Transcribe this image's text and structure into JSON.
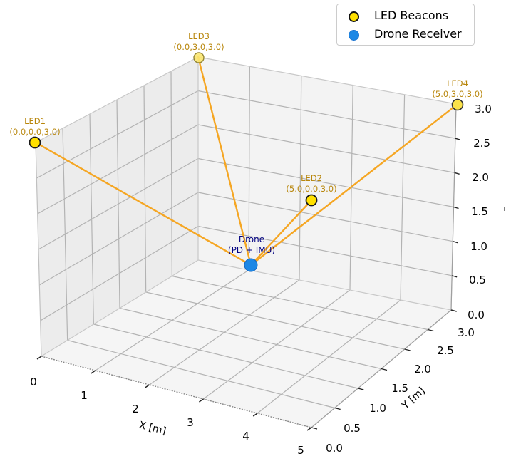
{
  "chart_data": {
    "type": "scatter3d",
    "title": "",
    "xlabel": "X [m]",
    "ylabel": "Y [m]",
    "zlabel": "",
    "xlim": [
      0,
      5
    ],
    "ylim": [
      0,
      3
    ],
    "zlim": [
      0,
      3
    ],
    "grid": true,
    "legend_position": "upper right",
    "x_ticks": [
      "0",
      "1",
      "2",
      "3",
      "4",
      "5"
    ],
    "y_ticks": [
      "0.0",
      "0.5",
      "1.0",
      "1.5",
      "2.0",
      "2.5",
      "3.0"
    ],
    "z_ticks": [
      "0.0",
      "0.5",
      "1.0",
      "1.5",
      "2.0",
      "2.5",
      "3.0"
    ],
    "series": [
      {
        "name": "LED Beacons",
        "marker": "circle",
        "color": "#ffe000",
        "edge_color": "#000000",
        "points": [
          {
            "label": "LED1",
            "coord_text": "(0.0,0.0,3.0)",
            "x": 0.0,
            "y": 0.0,
            "z": 3.0
          },
          {
            "label": "LED2",
            "coord_text": "(5.0,0.0,3.0)",
            "x": 5.0,
            "y": 0.0,
            "z": 3.0
          },
          {
            "label": "LED3",
            "coord_text": "(0.0,3.0,3.0)",
            "x": 0.0,
            "y": 3.0,
            "z": 3.0
          },
          {
            "label": "LED4",
            "coord_text": "(5.0,3.0,3.0)",
            "x": 5.0,
            "y": 3.0,
            "z": 3.0
          }
        ]
      },
      {
        "name": "Drone Receiver",
        "marker": "circle",
        "color": "#1e88e5",
        "points": [
          {
            "label": "Drone",
            "sublabel": "(PD + IMU)",
            "x": 2.5,
            "y": 1.5,
            "z": 1.0
          }
        ]
      }
    ],
    "lines": [
      {
        "from": "LED1",
        "to": "Drone",
        "color": "#f5a623"
      },
      {
        "from": "LED2",
        "to": "Drone",
        "color": "#f5a623"
      },
      {
        "from": "LED3",
        "to": "Drone",
        "color": "#f5a623"
      },
      {
        "from": "LED4",
        "to": "Drone",
        "color": "#f5a623"
      }
    ]
  },
  "legend": {
    "items": [
      {
        "label": "LED Beacons",
        "color": "#ffe000",
        "edge": "#000000"
      },
      {
        "label": "Drone Receiver",
        "color": "#1e88e5",
        "edge": "#1e88e5"
      }
    ]
  },
  "labels": {
    "led1_name": "LED1",
    "led1_coord": "(0.0,0.0,3.0)",
    "led2_name": "LED2",
    "led2_coord": "(5.0,0.0,3.0)",
    "led3_name": "LED3",
    "led3_coord": "(0.0,3.0,3.0)",
    "led4_name": "LED4",
    "led4_coord": "(5.0,3.0,3.0)",
    "drone_name": "Drone",
    "drone_sub": "(PD + IMU)"
  },
  "axes": {
    "x_label": "X [m]",
    "y_label": "Y [m]",
    "x_ticks": [
      "0",
      "1",
      "2",
      "3",
      "4",
      "5"
    ],
    "y_ticks": [
      "0.0",
      "0.5",
      "1.0",
      "1.5",
      "2.0",
      "2.5",
      "3.0"
    ],
    "z_ticks": [
      "0.0",
      "0.5",
      "1.0",
      "1.5",
      "2.0",
      "2.5",
      "3.0"
    ]
  },
  "colors": {
    "beam": "#f5a623",
    "led_fill": "#ffe000",
    "drone_fill": "#1e88e5",
    "label_gold": "#b8860b",
    "label_navy": "#000080",
    "pane": "#f2f2f2",
    "grid": "#b0b0b0"
  }
}
